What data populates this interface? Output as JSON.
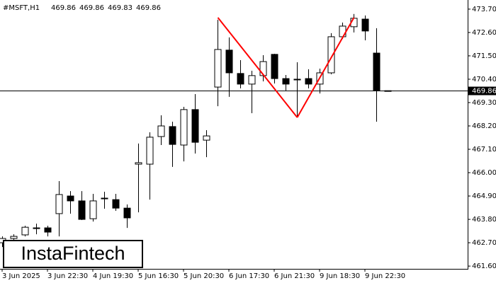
{
  "chart_data": {
    "type": "candlestick",
    "symbol": "#MSFT,H1",
    "logo": "InstaFintech",
    "categories": [
      "3 Jun 2025",
      null,
      null,
      null,
      "3 Jun 22:30",
      null,
      null,
      null,
      "4 Jun 19:30",
      null,
      null,
      null,
      "5 Jun 16:30",
      null,
      null,
      null,
      "5 Jun 20:30",
      null,
      null,
      null,
      "6 Jun 17:30",
      null,
      null,
      null,
      "6 Jun 21:30",
      null,
      null,
      null,
      "9 Jun 18:30",
      null,
      null,
      null,
      "9 Jun 22:30",
      null,
      null
    ],
    "open": [
      462.7,
      462.9,
      463.07,
      463.4,
      463.4,
      464.07,
      464.9,
      464.67,
      463.83,
      464.77,
      464.73,
      464.33,
      466.4,
      466.4,
      467.7,
      468.17,
      467.3,
      468.97,
      467.53,
      470.03,
      471.77,
      470.67,
      470.17,
      470.57,
      471.57,
      470.43,
      470.4,
      470.43,
      470.17,
      470.7,
      472.4,
      472.87,
      473.23,
      471.63,
      469.86
    ],
    "high": [
      463.0,
      463.1,
      463.5,
      463.6,
      463.5,
      465.6,
      465.13,
      465.13,
      465.0,
      465.1,
      465.0,
      464.5,
      467.37,
      467.9,
      468.7,
      468.4,
      469.1,
      469.7,
      468.0,
      473.2,
      472.37,
      471.3,
      470.8,
      471.53,
      471.6,
      470.6,
      471.2,
      470.87,
      470.9,
      472.57,
      473.07,
      473.47,
      473.4,
      472.8,
      469.86
    ],
    "low": [
      462.5,
      462.7,
      463.0,
      463.1,
      463.0,
      463.0,
      464.07,
      463.77,
      463.7,
      464.3,
      464.2,
      463.4,
      464.13,
      464.73,
      467.3,
      466.27,
      466.53,
      466.9,
      466.73,
      469.13,
      469.57,
      469.97,
      468.8,
      470.3,
      470.2,
      469.87,
      468.63,
      469.97,
      469.73,
      470.63,
      472.3,
      472.6,
      472.23,
      468.4,
      469.83
    ],
    "close": [
      462.9,
      463.0,
      463.43,
      463.4,
      463.2,
      464.97,
      464.67,
      463.8,
      464.67,
      464.8,
      464.33,
      463.87,
      466.47,
      467.67,
      468.2,
      467.33,
      468.97,
      467.43,
      467.73,
      471.8,
      470.7,
      470.17,
      470.57,
      471.23,
      470.43,
      470.17,
      470.4,
      470.17,
      470.7,
      472.4,
      472.9,
      473.27,
      472.67,
      469.87,
      469.86
    ],
    "pattern": {
      "color": "#ff0000",
      "points": [
        {
          "index": 19,
          "value": 473.3
        },
        {
          "index": 26,
          "value": 468.6
        },
        {
          "index": 31,
          "value": 473.3
        }
      ]
    },
    "ylim": [
      461.47,
      474.13
    ],
    "yticks": [
      {
        "value": 473.7,
        "label": "473.70"
      },
      {
        "value": 472.6,
        "label": "472.60"
      },
      {
        "value": 471.5,
        "label": "471.50"
      },
      {
        "value": 470.4,
        "label": "470.40"
      },
      {
        "value": 469.3,
        "label": "469.30"
      },
      {
        "value": 468.2,
        "label": "468.20"
      },
      {
        "value": 467.1,
        "label": "467.10"
      },
      {
        "value": 466.0,
        "label": "466.00"
      },
      {
        "value": 464.9,
        "label": "464.90"
      },
      {
        "value": 463.8,
        "label": "463.80"
      },
      {
        "value": 462.7,
        "label": "462.70"
      },
      {
        "value": 461.6,
        "label": "461.60"
      }
    ],
    "grid": false
  }
}
